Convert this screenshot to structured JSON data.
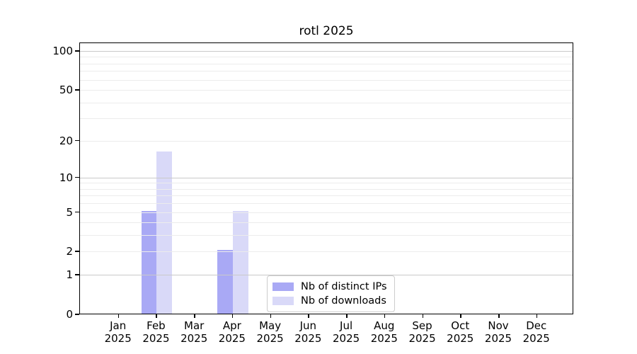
{
  "chart_data": {
    "type": "bar",
    "title": "rotl 2025",
    "categories": [
      "Jan",
      "Feb",
      "Mar",
      "Apr",
      "May",
      "Jun",
      "Jul",
      "Aug",
      "Sep",
      "Oct",
      "Nov",
      "Dec"
    ],
    "x_sublabel": "2025",
    "series": [
      {
        "name": "Nb of distinct IPs",
        "color": "#a9a9f5",
        "values": [
          0,
          5,
          0,
          2,
          0,
          0,
          0,
          0,
          0,
          0,
          0,
          0
        ]
      },
      {
        "name": "Nb of downloads",
        "color": "#d9d9f8",
        "values": [
          0,
          16,
          0,
          5,
          0,
          0,
          0,
          0,
          0,
          0,
          0,
          0
        ]
      }
    ],
    "y_axis": {
      "scale": "log10(v+1)",
      "ylim": [
        0,
        115
      ],
      "tick_values": [
        0,
        1,
        2,
        5,
        10,
        20,
        50,
        100
      ],
      "tick_labels": [
        "0",
        "1",
        "2",
        "5",
        "10",
        "20",
        "50",
        "100"
      ],
      "major_grid_values": [
        1,
        10,
        100
      ],
      "minor_grid_values": [
        2,
        3,
        4,
        5,
        6,
        7,
        8,
        9,
        20,
        30,
        40,
        50,
        60,
        70,
        80,
        90
      ]
    },
    "grid": "horizontal",
    "legend_position": "lower-center"
  },
  "colors": {
    "bar_distinct_ips": "#a9a9f5",
    "bar_downloads": "#d9d9f8",
    "grid_major": "#c9c9c9",
    "grid_minor": "#ececec",
    "axis": "#000000",
    "legend_border": "#cccccc",
    "background": "#ffffff"
  }
}
